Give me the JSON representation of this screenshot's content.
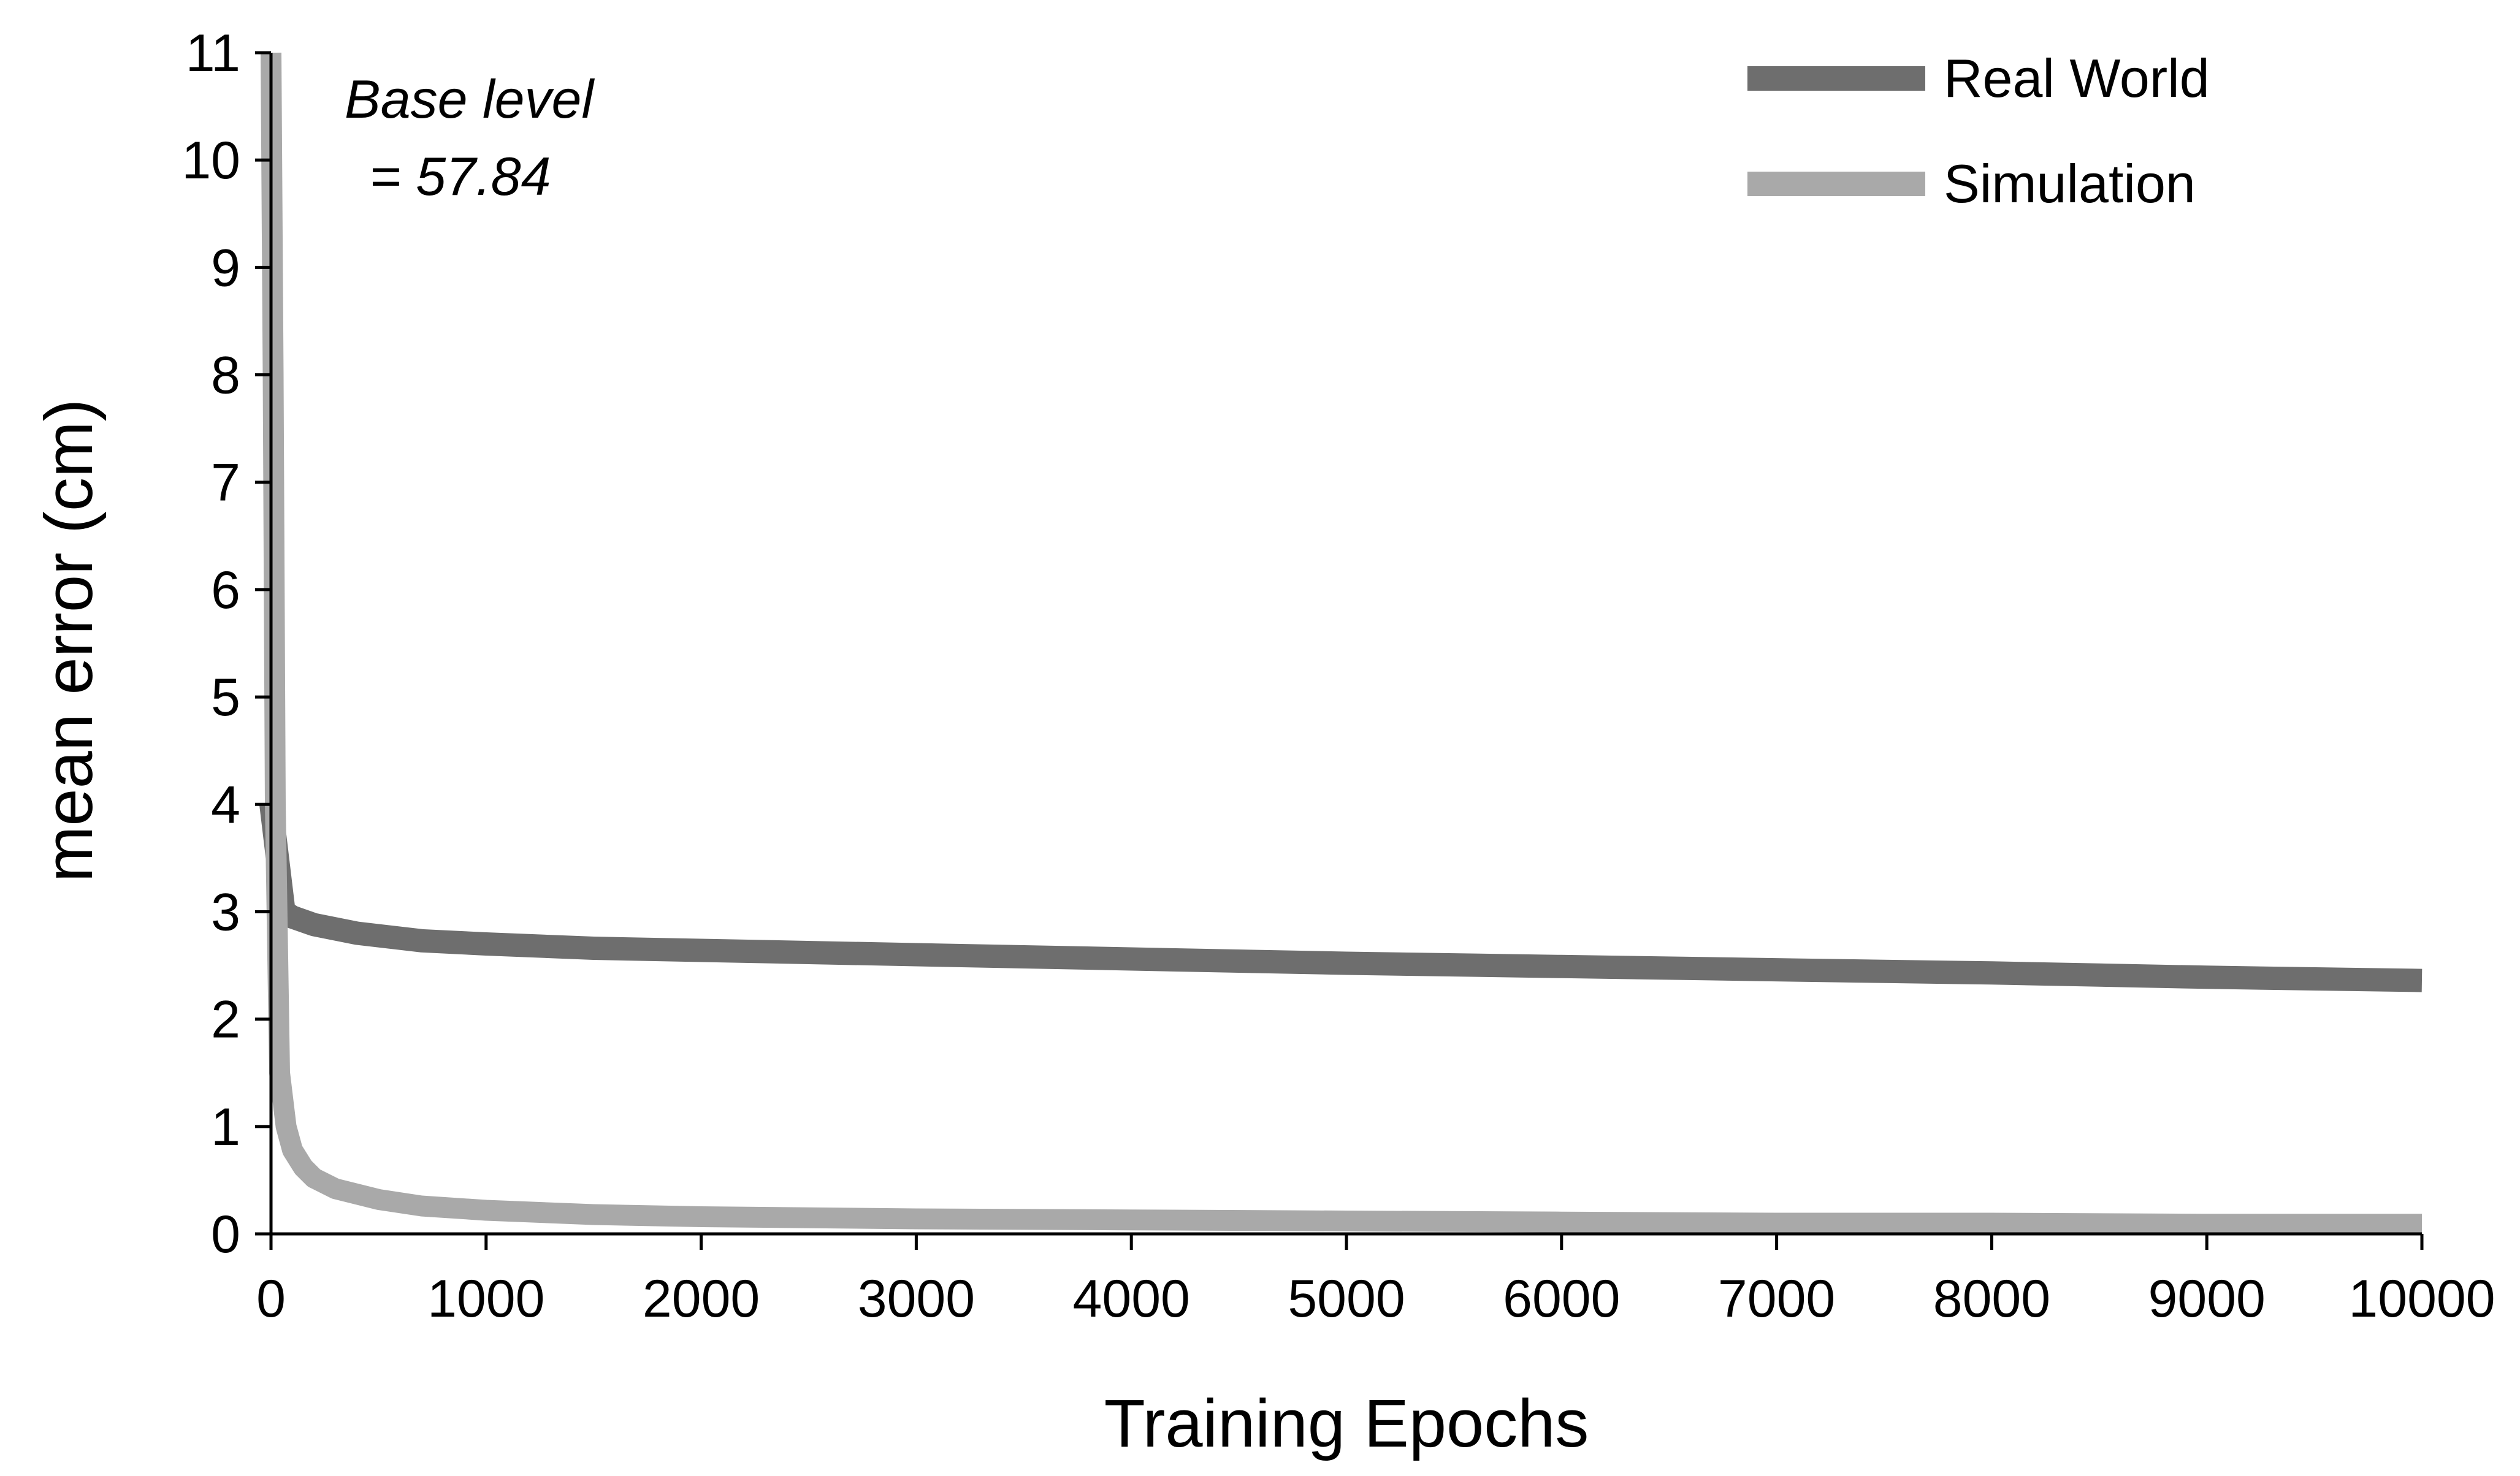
{
  "chart_data": {
    "type": "line",
    "title": "",
    "xlabel": "Training Epochs",
    "ylabel": "mean error (cm)",
    "xlim": [
      0,
      10000
    ],
    "ylim": [
      0,
      11
    ],
    "xticks": [
      "0",
      "1000",
      "2000",
      "3000",
      "4000",
      "5000",
      "6000",
      "7000",
      "8000",
      "9000",
      "10000"
    ],
    "yticks": [
      "0",
      "1",
      "2",
      "3",
      "4",
      "5",
      "6",
      "7",
      "8",
      "9",
      "10",
      "11"
    ],
    "grid": false,
    "legend_position": "top-right",
    "annotation": {
      "line1": "Base level",
      "line2": " = 57.84"
    },
    "series": [
      {
        "name": "Real World",
        "color": "#6e6e6e",
        "x": [
          0,
          30,
          60,
          100,
          200,
          400,
          700,
          1000,
          1500,
          2000,
          3000,
          4000,
          5000,
          6000,
          7000,
          8000,
          9000,
          10000
        ],
        "y": [
          4.0,
          3.5,
          3.0,
          2.95,
          2.88,
          2.8,
          2.73,
          2.7,
          2.66,
          2.64,
          2.6,
          2.56,
          2.52,
          2.49,
          2.46,
          2.43,
          2.39,
          2.36
        ]
      },
      {
        "name": "Simulation",
        "color": "#a9a9a9",
        "x": [
          0,
          10,
          20,
          40,
          70,
          100,
          150,
          200,
          300,
          500,
          700,
          1000,
          1500,
          2000,
          3000,
          4000,
          5000,
          6000,
          7000,
          8000,
          9000,
          10000
        ],
        "y": [
          11.0,
          8.0,
          4.0,
          1.5,
          1.0,
          0.78,
          0.62,
          0.52,
          0.42,
          0.32,
          0.26,
          0.22,
          0.18,
          0.16,
          0.14,
          0.13,
          0.12,
          0.11,
          0.1,
          0.1,
          0.09,
          0.09
        ]
      }
    ]
  }
}
